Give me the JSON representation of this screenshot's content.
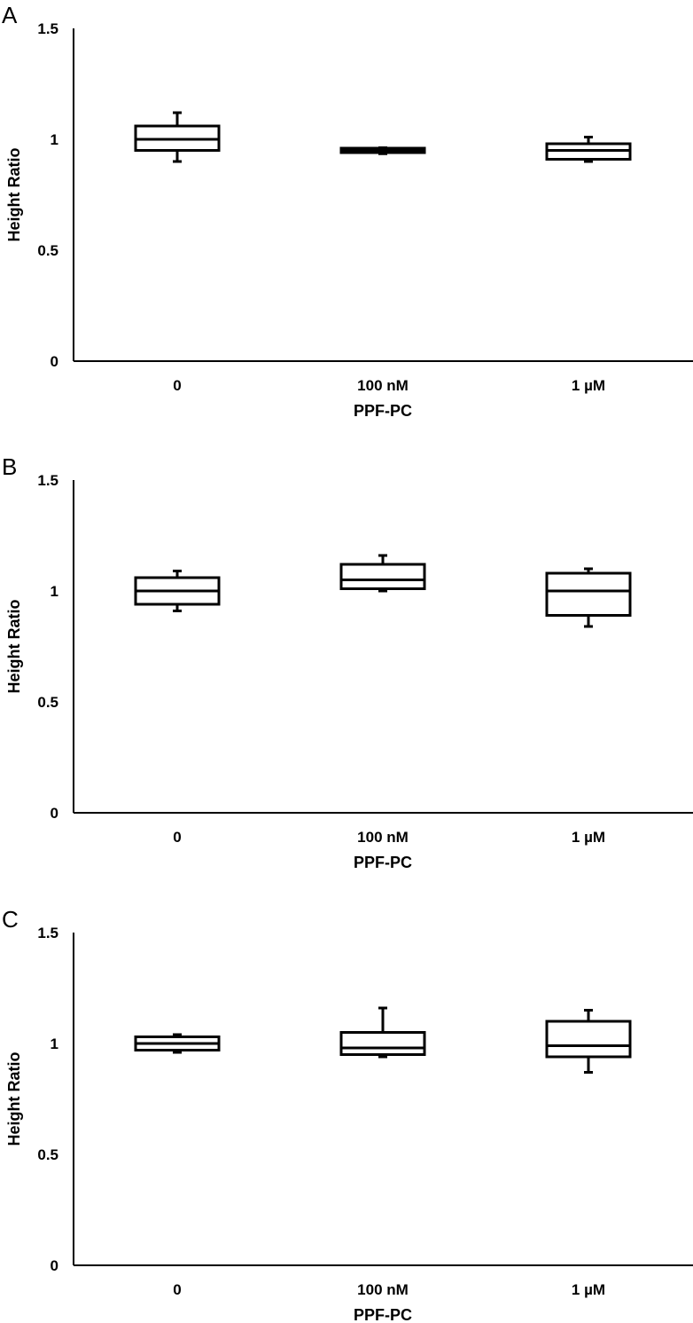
{
  "chart_data": [
    {
      "type": "box",
      "panel_label": "A",
      "categories": [
        "0",
        "100 nM",
        "1 µM"
      ],
      "boxes": [
        {
          "min": 0.9,
          "q1": 0.95,
          "median": 1.0,
          "q3": 1.06,
          "max": 1.12
        },
        {
          "min": 0.935,
          "q1": 0.94,
          "median": 0.95,
          "q3": 0.96,
          "max": 0.962
        },
        {
          "min": 0.9,
          "q1": 0.91,
          "median": 0.95,
          "q3": 0.98,
          "max": 1.01
        }
      ],
      "xlabel": "PPF-PC",
      "ylabel": "Height Ratio",
      "ylim": [
        0,
        1.5
      ],
      "yticks": [
        0,
        0.5,
        1,
        1.5
      ],
      "ytick_labels": [
        "0",
        "0.5",
        "1",
        "1.5"
      ],
      "grid": false
    },
    {
      "type": "box",
      "panel_label": "B",
      "categories": [
        "0",
        "100 nM",
        "1 µM"
      ],
      "boxes": [
        {
          "min": 0.91,
          "q1": 0.94,
          "median": 1.0,
          "q3": 1.06,
          "max": 1.09
        },
        {
          "min": 1.0,
          "q1": 1.01,
          "median": 1.05,
          "q3": 1.12,
          "max": 1.16
        },
        {
          "min": 0.84,
          "q1": 0.89,
          "median": 1.0,
          "q3": 1.08,
          "max": 1.1
        }
      ],
      "xlabel": "PPF-PC",
      "ylabel": "Height Ratio",
      "ylim": [
        0,
        1.5
      ],
      "yticks": [
        0,
        0.5,
        1,
        1.5
      ],
      "ytick_labels": [
        "0",
        "0.5",
        "1",
        "1.5"
      ],
      "grid": false
    },
    {
      "type": "box",
      "panel_label": "C",
      "categories": [
        "0",
        "100 nM",
        "1 µM"
      ],
      "boxes": [
        {
          "min": 0.96,
          "q1": 0.97,
          "median": 1.0,
          "q3": 1.03,
          "max": 1.04
        },
        {
          "min": 0.94,
          "q1": 0.95,
          "median": 0.98,
          "q3": 1.05,
          "max": 1.16
        },
        {
          "min": 0.87,
          "q1": 0.94,
          "median": 0.99,
          "q3": 1.1,
          "max": 1.15
        }
      ],
      "xlabel": "PPF-PC",
      "ylabel": "Height Ratio",
      "ylim": [
        0,
        1.5
      ],
      "yticks": [
        0,
        0.5,
        1,
        1.5
      ],
      "ytick_labels": [
        "0",
        "0.5",
        "1",
        "1.5"
      ],
      "grid": false
    }
  ]
}
